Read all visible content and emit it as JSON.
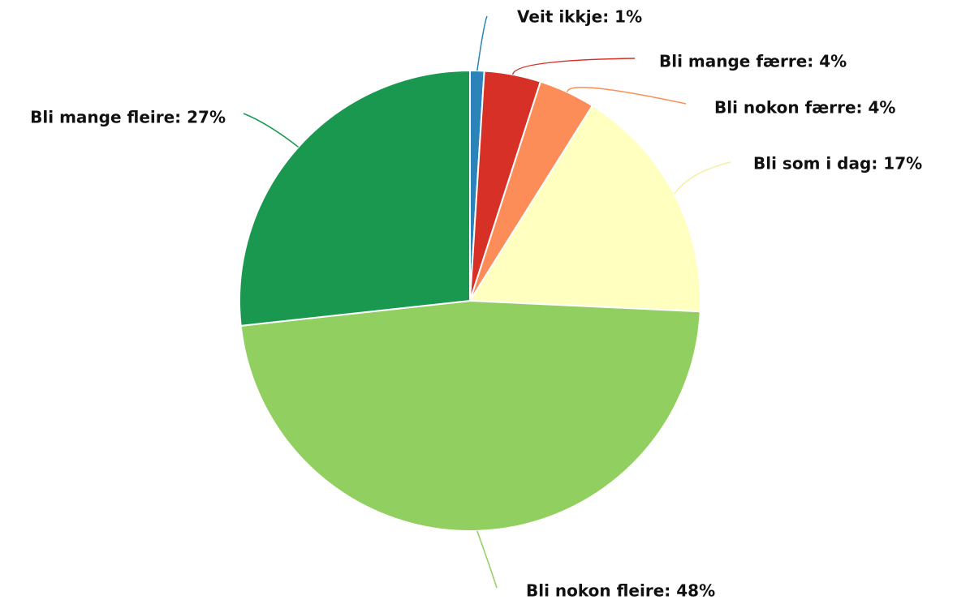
{
  "chart_data": {
    "type": "pie",
    "values": [
      1,
      4,
      4,
      17,
      48,
      27
    ],
    "value_labels": [
      "Veit ikkje: 1%",
      "Bli mange færre: 4%",
      "Bli nokon færre: 4%",
      "Bli som i dag: 17%",
      "Bli nokon fleire: 48%",
      "Bli mange fleire: 27%"
    ],
    "colors": [
      "#2b83ba",
      "#d73027",
      "#fc8d59",
      "#ffffbf",
      "#91cf60",
      "#1a9850"
    ]
  }
}
